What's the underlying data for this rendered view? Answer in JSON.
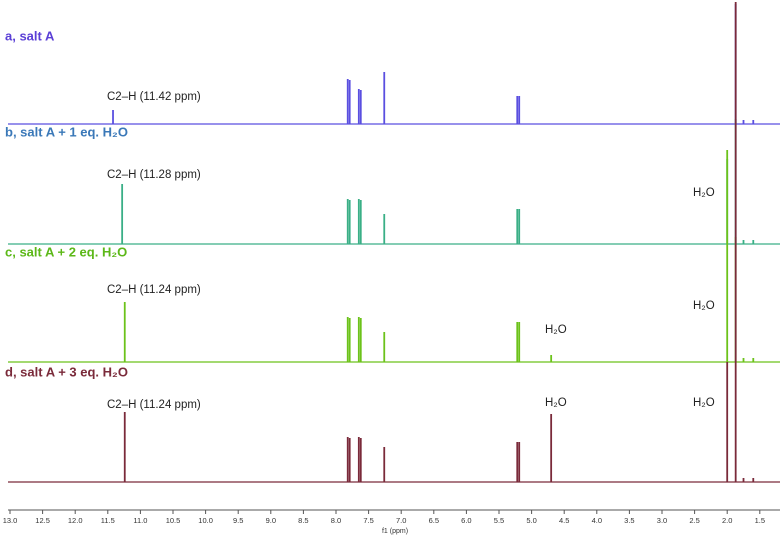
{
  "chart_data": {
    "type": "stacked-spectra",
    "x_label": "f1 (ppm)",
    "xlim": [
      13.0,
      1.2
    ],
    "xticks": [
      {
        "value": 13,
        "label": "13.0"
      },
      12.5,
      {
        "value": 12,
        "label": "12.0"
      },
      11.5,
      {
        "value": 11,
        "label": "11.0"
      },
      10.5,
      {
        "value": 10,
        "label": "10.0"
      },
      9.5,
      {
        "value": 9,
        "label": "9.0"
      },
      8.5,
      {
        "value": 8,
        "label": "8.0"
      },
      7.5,
      {
        "value": 7,
        "label": "7.0"
      },
      6.5,
      {
        "value": 6,
        "label": "6.0"
      },
      5.5,
      {
        "value": 5,
        "label": "5.0"
      },
      4.5,
      {
        "value": 4,
        "label": "4.0"
      },
      3.5,
      {
        "value": 3,
        "label": "3.0"
      },
      2.5,
      {
        "value": 2,
        "label": "2.0"
      },
      1.5
    ],
    "series": [
      {
        "name": "a, salt A",
        "color": "#5a4fe0",
        "label_color": "#5a3fd6",
        "peak_x": [
          11.42,
          7.82,
          7.79,
          7.65,
          7.62,
          7.26,
          5.22,
          5.19,
          1.87,
          1.75,
          1.6
        ],
        "peak_heights": [
          14,
          45,
          44,
          35,
          34,
          52,
          28,
          28,
          120,
          4,
          4
        ],
        "annotations": [
          "C2–H (11.42 ppm)"
        ]
      },
      {
        "name": "b, salt A + 1 eq. H₂O",
        "color": "#3aaf86",
        "label_color": "#3a78b8",
        "peak_x": [
          11.28,
          7.82,
          7.79,
          7.65,
          7.62,
          5.22,
          5.19,
          7.26,
          2.0,
          1.87,
          1.75,
          1.6
        ],
        "peak_heights": [
          60,
          45,
          44,
          45,
          44,
          35,
          35,
          30,
          85,
          125,
          4,
          4
        ],
        "annotations": [
          "C2–H (11.28 ppm)",
          "H₂O"
        ]
      },
      {
        "name": "c, salt A + 2 eq. H₂O",
        "color": "#6cc21a",
        "label_color": "#5cb818",
        "peak_x": [
          11.24,
          7.82,
          7.79,
          7.65,
          7.62,
          7.26,
          5.22,
          5.19,
          4.7,
          2.0,
          1.87,
          1.75,
          1.6
        ],
        "peak_heights": [
          60,
          45,
          44,
          45,
          44,
          30,
          40,
          40,
          7,
          212,
          125,
          4,
          4
        ],
        "annotations": [
          "C2–H (11.24 ppm)",
          "H₂O",
          "H₂O"
        ]
      },
      {
        "name": "d, salt A + 3 eq. H₂O",
        "color": "#7a2a3a",
        "label_color": "#7a2a3a",
        "peak_x": [
          11.24,
          7.82,
          7.79,
          7.65,
          7.62,
          7.26,
          5.22,
          5.19,
          4.7,
          2.0,
          1.87,
          1.75,
          1.6
        ],
        "peak_heights": [
          70,
          45,
          44,
          45,
          44,
          35,
          40,
          40,
          68,
          120,
          480,
          4,
          4
        ],
        "annotations": [
          "C2–H (11.24 ppm)",
          "H₂O",
          "H₂O"
        ]
      }
    ]
  }
}
